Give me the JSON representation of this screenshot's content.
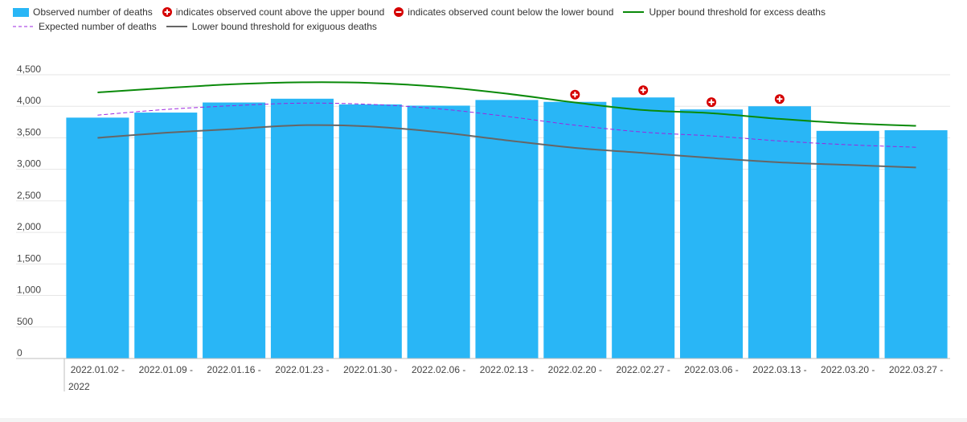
{
  "chart_data": {
    "type": "bar",
    "categories": [
      "2022.01.02 -",
      "2022.01.09 -",
      "2022.01.16 -",
      "2022.01.23 -",
      "2022.01.30 -",
      "2022.02.06 -",
      "2022.02.13 -",
      "2022.02.20 -",
      "2022.02.27 -",
      "2022.03.06 -",
      "2022.03.13 -",
      "2022.03.20 -",
      "2022.03.27 -"
    ],
    "first_category_continuation": "2022",
    "series": [
      {
        "name": "Observed number of deaths",
        "type": "bar",
        "color": "#29b6f6",
        "values": [
          3820,
          3900,
          4060,
          4120,
          4030,
          4010,
          4100,
          4070,
          4140,
          3950,
          4000,
          3610,
          3620
        ]
      },
      {
        "name": "Upper bound threshold for excess deaths",
        "type": "line",
        "color": "#0a8a0a",
        "values": [
          4220,
          4290,
          4350,
          4380,
          4370,
          4310,
          4200,
          4060,
          3940,
          3890,
          3800,
          3730,
          3690
        ]
      },
      {
        "name": "Expected number of deaths",
        "type": "line-dashed",
        "color": "#9c27e0",
        "values": [
          3860,
          3950,
          4010,
          4050,
          4030,
          3960,
          3840,
          3700,
          3590,
          3530,
          3450,
          3390,
          3350
        ]
      },
      {
        "name": "Lower bound threshold for exiguous deaths",
        "type": "line",
        "color": "#666666",
        "values": [
          3500,
          3580,
          3640,
          3700,
          3680,
          3590,
          3460,
          3340,
          3260,
          3180,
          3110,
          3070,
          3030
        ]
      }
    ],
    "markers": {
      "above_upper_bound": {
        "label": "indicates observed count above the upper bound",
        "color": "#d50000",
        "category_indices": [
          7,
          8,
          9,
          10
        ]
      },
      "below_lower_bound": {
        "label": "indicates observed count below the lower bound",
        "color": "#d50000",
        "category_indices": []
      }
    },
    "yticks": [
      0,
      500,
      1000,
      1500,
      2000,
      2500,
      3000,
      3500,
      4000,
      4500
    ],
    "ytick_labels": [
      "0",
      "500",
      "1,000",
      "1,500",
      "2,000",
      "2,500",
      "3,000",
      "3,500",
      "4,000",
      "4,500"
    ],
    "ylim": [
      0,
      4500
    ],
    "grid": true,
    "legend_position": "top",
    "title": "",
    "xlabel": "",
    "ylabel": ""
  }
}
